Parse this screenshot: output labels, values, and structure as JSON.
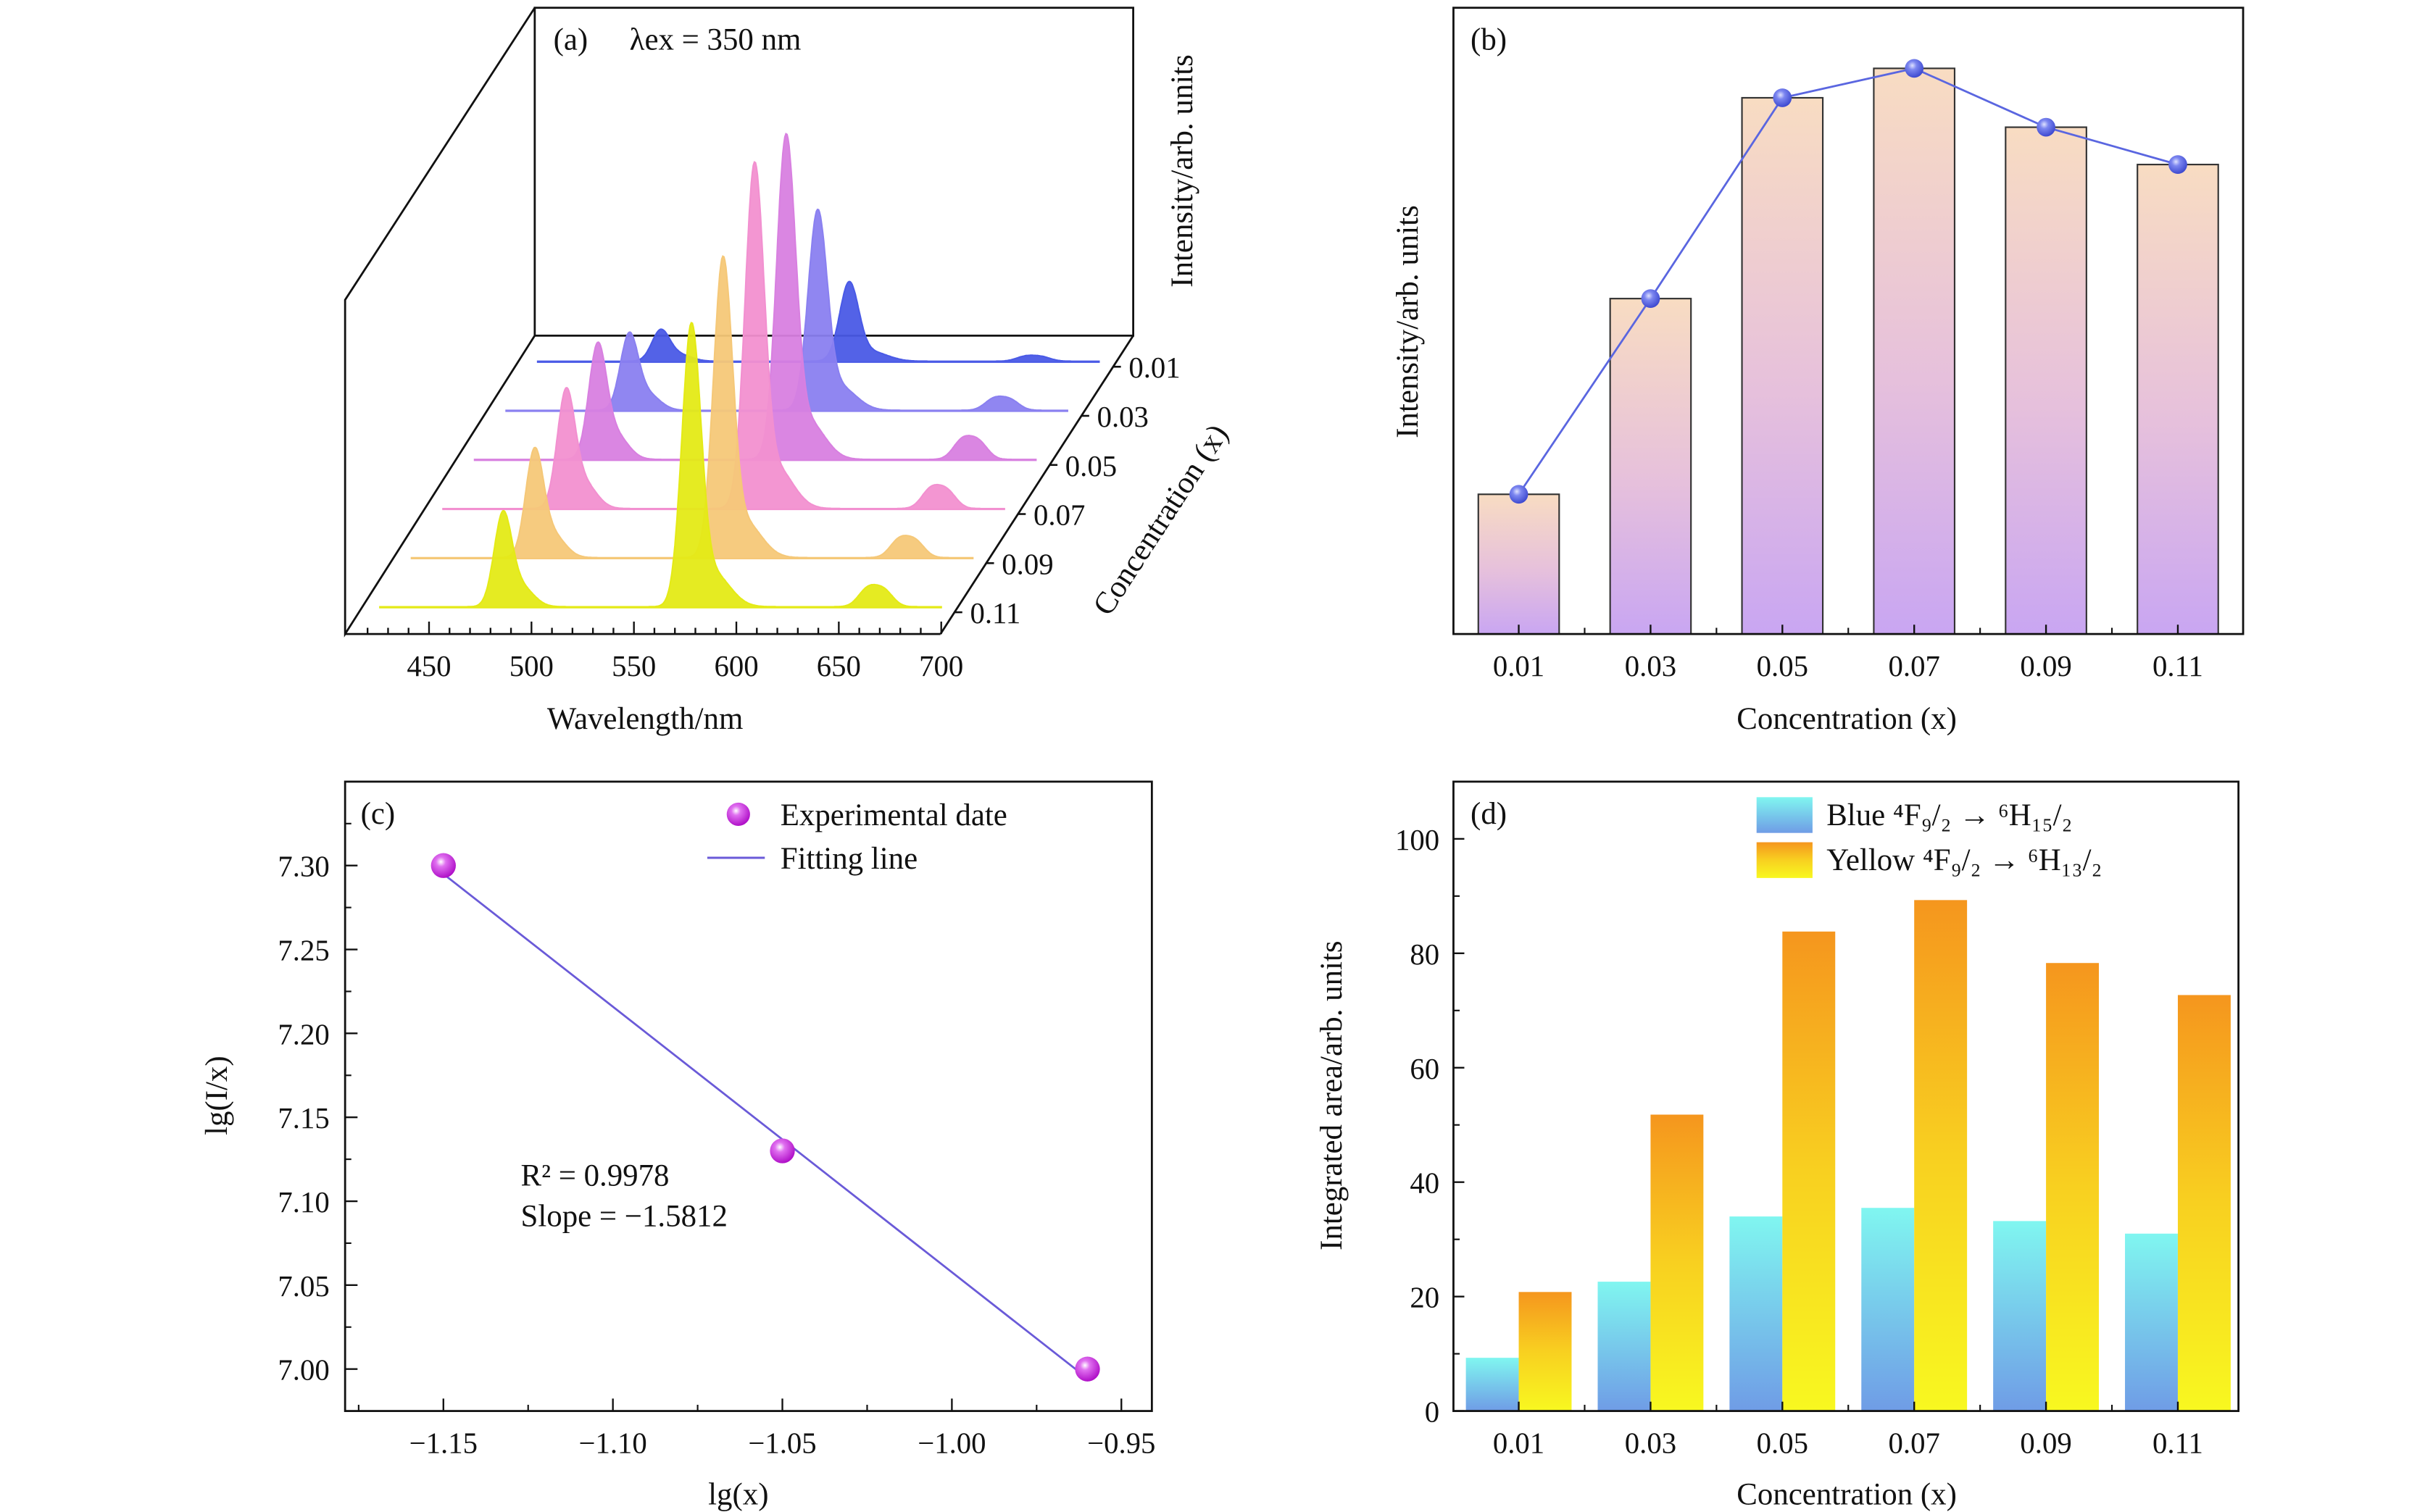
{
  "colors": {
    "rows": [
      "#4a5ae6",
      "#8a80f0",
      "#d880e0",
      "#f290d0",
      "#f5c878",
      "#e4ea16"
    ],
    "b_line": "#5a66e0",
    "c_points": "#d020e0",
    "c_line": "#6a5ad8",
    "d_blue_bottom": "#6f9ce6",
    "d_blue_top": "#80f6f0",
    "d_yellow_bottom": "#f8f820",
    "d_yellow_top": "#f5961e"
  },
  "chart_data": [
    {
      "panel": "(a)",
      "type": "area",
      "title": "λex =  350 nm",
      "xlabel": "Wavelength/nm",
      "ylabel": "Intensity/arb. units",
      "zlabel": "Concentration (x)",
      "xlim": [
        420,
        700
      ],
      "xticks": [
        "450",
        "500",
        "550",
        "600",
        "650",
        "700"
      ],
      "zticks": [
        "0.01",
        "0.03",
        "0.05",
        "0.07",
        "0.09",
        "0.11"
      ],
      "series": [
        {
          "name": "0.01",
          "peaks": [
            {
              "wavelength": 486,
              "intensity": 9
            },
            {
              "wavelength": 578,
              "intensity": 23
            },
            {
              "wavelength": 668,
              "intensity": 1.4
            }
          ]
        },
        {
          "name": "0.03",
          "peaks": [
            {
              "wavelength": 486,
              "intensity": 22
            },
            {
              "wavelength": 578,
              "intensity": 58
            },
            {
              "wavelength": 668,
              "intensity": 3.3
            }
          ]
        },
        {
          "name": "0.05",
          "peaks": [
            {
              "wavelength": 486,
              "intensity": 33
            },
            {
              "wavelength": 578,
              "intensity": 94
            },
            {
              "wavelength": 668,
              "intensity": 5.6
            }
          ]
        },
        {
          "name": "0.07",
          "peaks": [
            {
              "wavelength": 486,
              "intensity": 34
            },
            {
              "wavelength": 578,
              "intensity": 100
            },
            {
              "wavelength": 668,
              "intensity": 5.6
            }
          ]
        },
        {
          "name": "0.09",
          "peaks": [
            {
              "wavelength": 486,
              "intensity": 31
            },
            {
              "wavelength": 578,
              "intensity": 87
            },
            {
              "wavelength": 668,
              "intensity": 5.2
            }
          ]
        },
        {
          "name": "0.11",
          "peaks": [
            {
              "wavelength": 486,
              "intensity": 27
            },
            {
              "wavelength": 578,
              "intensity": 82
            },
            {
              "wavelength": 668,
              "intensity": 5.2
            }
          ]
        }
      ]
    },
    {
      "panel": "(b)",
      "type": "bar",
      "xlabel": "Concentration (x)",
      "ylabel": "Intensity/arb. units",
      "categories": [
        "0.01",
        "0.03",
        "0.05",
        "0.07",
        "0.09",
        "0.11"
      ],
      "values": [
        24.7,
        59.3,
        94.8,
        100,
        89.6,
        83.0
      ],
      "ylim": [
        0,
        111
      ],
      "overlay_line": true
    },
    {
      "panel": "(c)",
      "type": "scatter",
      "xlabel": "lg(x)",
      "ylabel": "lg(I/x)",
      "xlim": [
        -1.179,
        -0.941
      ],
      "ylim": [
        6.975,
        7.35
      ],
      "xticks": [
        "−1.15",
        "−1.10",
        "−1.05",
        "−1.00",
        "−0.95"
      ],
      "xtick_values": [
        -1.15,
        -1.1,
        -1.05,
        -1.0,
        -0.95
      ],
      "yticks": [
        "7.00",
        "7.05",
        "7.10",
        "7.15",
        "7.20",
        "7.25",
        "7.30"
      ],
      "ytick_values": [
        7.0,
        7.05,
        7.1,
        7.15,
        7.2,
        7.25,
        7.3
      ],
      "points": [
        {
          "x": -1.15,
          "y": 7.3
        },
        {
          "x": -1.05,
          "y": 7.13
        },
        {
          "x": -0.96,
          "y": 7.0
        }
      ],
      "fit": {
        "x": [
          -1.15,
          -0.961
        ],
        "y": [
          7.295,
          6.996
        ]
      },
      "legend": [
        "Experimental date",
        "Fitting line"
      ],
      "legend_position": "top-right",
      "annotations": [
        "R² = 0.9978",
        "Slope = −1.5812"
      ]
    },
    {
      "panel": "(d)",
      "type": "bar",
      "xlabel": "Concentration (x)",
      "ylabel": "Integrated area/arb. units",
      "categories": [
        "0.01",
        "0.03",
        "0.05",
        "0.07",
        "0.09",
        "0.11"
      ],
      "ylim": [
        0,
        110
      ],
      "yticks": [
        "0",
        "20",
        "40",
        "60",
        "80",
        "100"
      ],
      "ytick_values": [
        0,
        20,
        40,
        60,
        80,
        100
      ],
      "series": [
        {
          "name": "Blue ⁴F₉/₂ → ⁶H₁₅/₂",
          "values": [
            9.3,
            22.6,
            34.0,
            35.5,
            33.2,
            31.0
          ]
        },
        {
          "name": "Yellow  ⁴F₉/₂ → ⁶H₁₃/₂",
          "values": [
            20.8,
            51.8,
            83.8,
            89.3,
            78.3,
            72.7
          ]
        }
      ],
      "legend_position": "top-right"
    }
  ]
}
